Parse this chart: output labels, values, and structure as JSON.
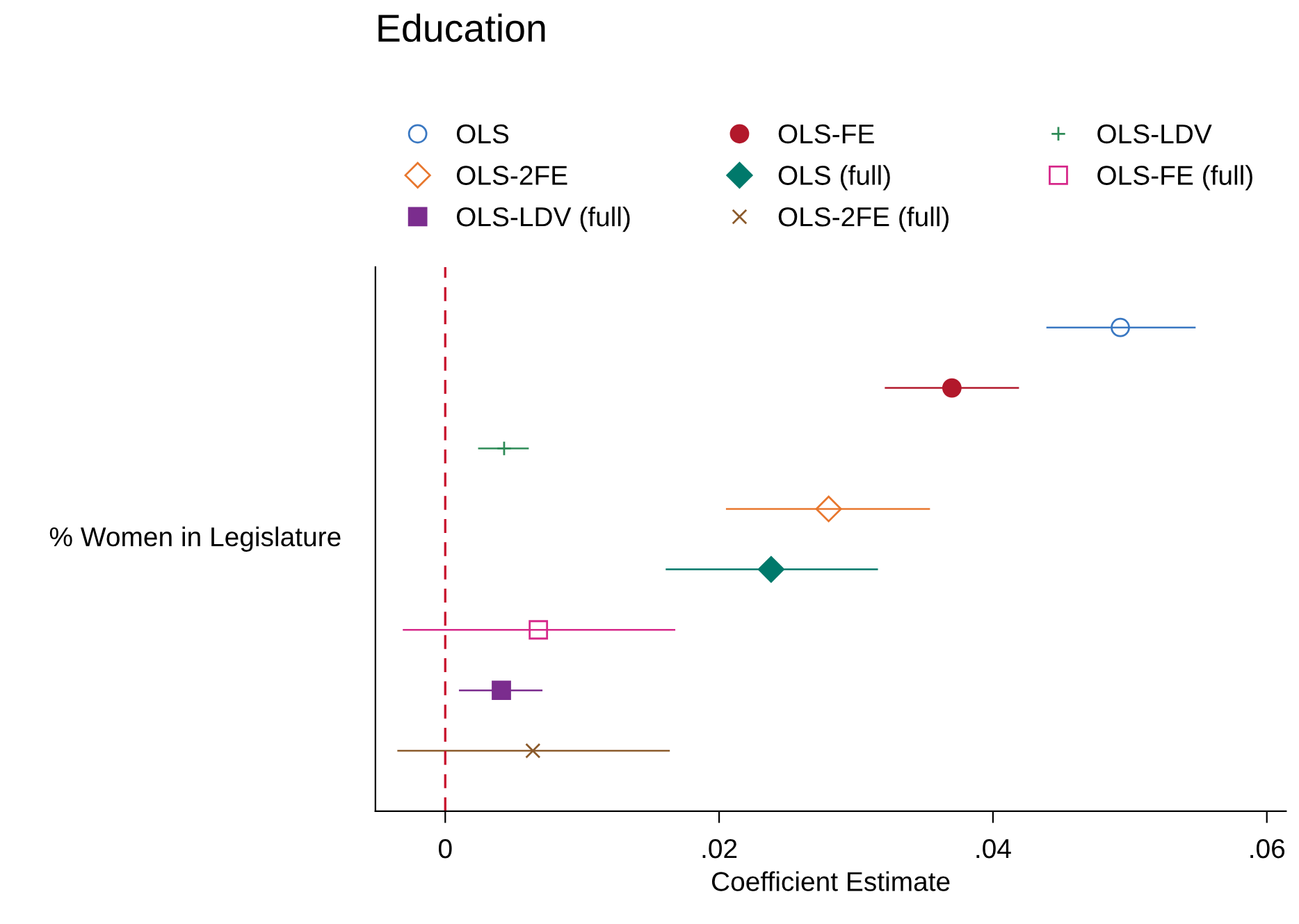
{
  "chart_data": {
    "type": "scatter",
    "orientation": "horizontal",
    "title": "Education",
    "xlabel": "Coefficient Estimate",
    "ylabel": "% Women in Legislature",
    "categories": [
      null,
      null,
      null,
      null,
      null,
      null,
      null,
      null
    ],
    "xlim": [
      -0.0051,
      0.0614
    ],
    "xticks": [
      {
        "value": 0,
        "label": "0"
      },
      {
        "value": 0.02,
        "label": ".02"
      },
      {
        "value": 0.04,
        "label": ".04"
      },
      {
        "value": 0.06,
        "label": ".06"
      }
    ],
    "tick_labels": "x",
    "grid": false,
    "legend": "top",
    "ref_lines": [
      {
        "axis": "x",
        "value": 0,
        "color": "#c8102e",
        "line_style": "dashed"
      }
    ],
    "series": [
      {
        "name": "OLS",
        "color": "#3a78c2",
        "marker": "circle",
        "values": [
          0.0493,
          null,
          null,
          null,
          null,
          null,
          null,
          null
        ],
        "errors": [
          [
            0.0439,
            0.0548
          ],
          null,
          null,
          null,
          null,
          null,
          null,
          null
        ]
      },
      {
        "name": "OLS-FE",
        "color": "#b2182b",
        "marker": "circle",
        "values": [
          null,
          0.037,
          null,
          null,
          null,
          null,
          null,
          null
        ],
        "errors": [
          null,
          [
            0.0321,
            0.0419
          ],
          null,
          null,
          null,
          null,
          null,
          null
        ]
      },
      {
        "name": "OLS-LDV",
        "color": "#2e8b57",
        "marker": "cross",
        "values": [
          null,
          null,
          0.0043,
          null,
          null,
          null,
          null,
          null
        ],
        "errors": [
          null,
          null,
          [
            0.0024,
            0.0061
          ],
          null,
          null,
          null,
          null,
          null
        ]
      },
      {
        "name": "OLS-2FE",
        "color": "#e8772e",
        "marker": "diamond",
        "values": [
          null,
          null,
          null,
          0.028,
          null,
          null,
          null,
          null
        ],
        "errors": [
          null,
          null,
          null,
          [
            0.0205,
            0.0354
          ],
          null,
          null,
          null,
          null
        ]
      },
      {
        "name": "OLS (full)",
        "color": "#00796b",
        "marker": "diamond",
        "values": [
          null,
          null,
          null,
          null,
          0.0238,
          null,
          null,
          null
        ],
        "errors": [
          null,
          null,
          null,
          null,
          [
            0.0161,
            0.0316
          ],
          null,
          null,
          null
        ]
      },
      {
        "name": "OLS-FE (full)",
        "color": "#d6288a",
        "marker": "square",
        "values": [
          null,
          null,
          null,
          null,
          null,
          0.0068,
          null,
          null
        ],
        "errors": [
          null,
          null,
          null,
          null,
          null,
          [
            -0.0031,
            0.0168
          ],
          null,
          null
        ]
      },
      {
        "name": "OLS-LDV (full)",
        "color": "#7b2d8e",
        "marker": "square",
        "values": [
          null,
          null,
          null,
          null,
          null,
          null,
          0.0041,
          null
        ],
        "errors": [
          null,
          null,
          null,
          null,
          null,
          null,
          [
            0.001,
            0.0071
          ],
          null
        ]
      },
      {
        "name": "OLS-2FE (full)",
        "color": "#8b5a2b",
        "marker": "cross",
        "values": [
          null,
          null,
          null,
          null,
          null,
          null,
          null,
          0.0064
        ],
        "errors": [
          null,
          null,
          null,
          null,
          null,
          null,
          null,
          [
            -0.0035,
            0.0164
          ]
        ]
      }
    ]
  }
}
